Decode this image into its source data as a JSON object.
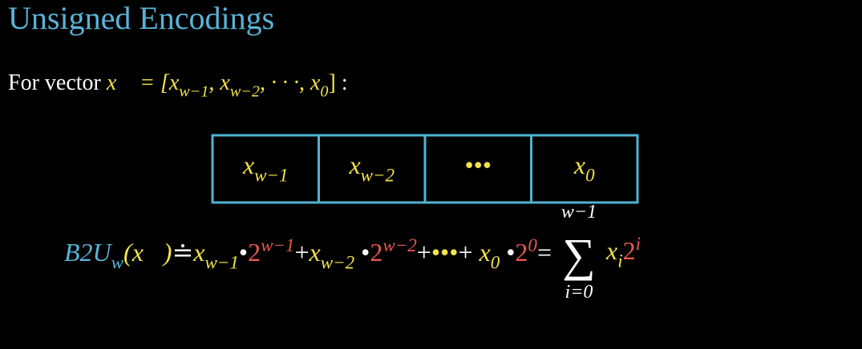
{
  "title": "Unsigned Encodings",
  "intro": [
    {
      "text": "For vector ",
      "color": "#ffffff",
      "italic": false
    },
    {
      "text": "x⃗ = [x",
      "sub": "w−1",
      "color": "#f2e34c",
      "italic": true
    },
    {
      "text": ", x",
      "sub": "w−2",
      "color": "#f2e34c",
      "italic": true
    },
    {
      "text": ", · · ·, x",
      "sub": "0",
      "color": "#f2e34c",
      "italic": true
    },
    {
      "text": "]",
      "color": "#f2e34c",
      "italic": false
    },
    {
      "text": " :",
      "color": "#ffffff",
      "italic": false
    }
  ],
  "cells": [
    [
      {
        "text": "x",
        "sub": "w−1",
        "color": "#f2e34c",
        "italic": true
      }
    ],
    [
      {
        "text": "x",
        "sub": "w−2",
        "color": "#f2e34c",
        "italic": true
      }
    ],
    [
      {
        "text": "•••",
        "color": "#f2e34c",
        "italic": false
      }
    ],
    [
      {
        "text": "x",
        "sub": "0",
        "color": "#f2e34c",
        "italic": true
      }
    ]
  ],
  "formula": [
    {
      "text": "B2U",
      "sub": "w",
      "color": "#58b4d8",
      "italic": true
    },
    {
      "text": "(x⃗)",
      "color": "#f2e34c",
      "italic": true
    },
    {
      "text": "≐",
      "color": "#ffffff",
      "italic": false
    },
    {
      "text": "x",
      "sub": "w−1",
      "color": "#f2e34c",
      "italic": true
    },
    {
      "text": "•",
      "color": "#ffffff",
      "italic": false
    },
    {
      "text": "2",
      "sup": "w−1",
      "color": "#e8584f",
      "italic": false
    },
    {
      "text": "+",
      "color": "#ffffff",
      "italic": false
    },
    {
      "text": "x",
      "sub": "w−2",
      "color": "#f2e34c",
      "italic": true
    },
    {
      "text": " •",
      "color": "#ffffff",
      "italic": false
    },
    {
      "text": "2",
      "sup": "w−2",
      "color": "#e8584f",
      "italic": false
    },
    {
      "text": "+",
      "color": "#ffffff",
      "italic": false
    },
    {
      "text": "•••",
      "color": "#f2e34c",
      "italic": false
    },
    {
      "text": "+ ",
      "color": "#ffffff",
      "italic": false
    },
    {
      "text": "x",
      "sub": "0",
      "color": "#f2e34c",
      "italic": true
    },
    {
      "text": " •",
      "color": "#ffffff",
      "italic": false
    },
    {
      "text": "2",
      "sup": "0",
      "color": "#e8584f",
      "italic": false
    },
    {
      "text": "=",
      "color": "#ffffff",
      "italic": false
    }
  ],
  "sum": {
    "symbol": "∑",
    "upper": "w−1",
    "lower": "i=0",
    "term": [
      {
        "text": "x",
        "sub": "i",
        "color": "#f2e34c",
        "italic": true
      },
      {
        "text": "2",
        "sup": "i",
        "color": "#e8584f",
        "italic": false
      }
    ]
  }
}
